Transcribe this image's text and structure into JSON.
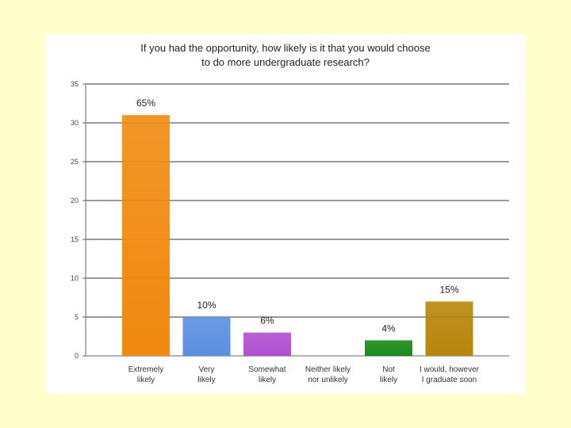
{
  "chart_data": {
    "type": "bar",
    "title_lines": [
      "If you had the opportunity, how likely is it that you would choose",
      "to do more undergraduate research?"
    ],
    "categories": [
      [
        "Extremely",
        "likely"
      ],
      [
        "Very",
        "likely"
      ],
      [
        "Somewhat",
        "likely"
      ],
      [
        "Neither likely",
        "nor unlikely"
      ],
      [
        "Not",
        "likely"
      ],
      [
        "I would, however",
        "I graduate soon"
      ]
    ],
    "values": [
      31,
      5,
      3,
      0,
      2,
      7
    ],
    "data_labels": [
      "65%",
      "10%",
      "6%",
      "",
      "4%",
      "15%"
    ],
    "colors": [
      "#f08a10",
      "#5b8fe0",
      "#b050d0",
      "#888888",
      "#1a8a1a",
      "#b8860b"
    ],
    "yticks": [
      0,
      5,
      10,
      15,
      20,
      25,
      30,
      35
    ],
    "ylim": [
      0,
      35
    ],
    "grid": true
  }
}
